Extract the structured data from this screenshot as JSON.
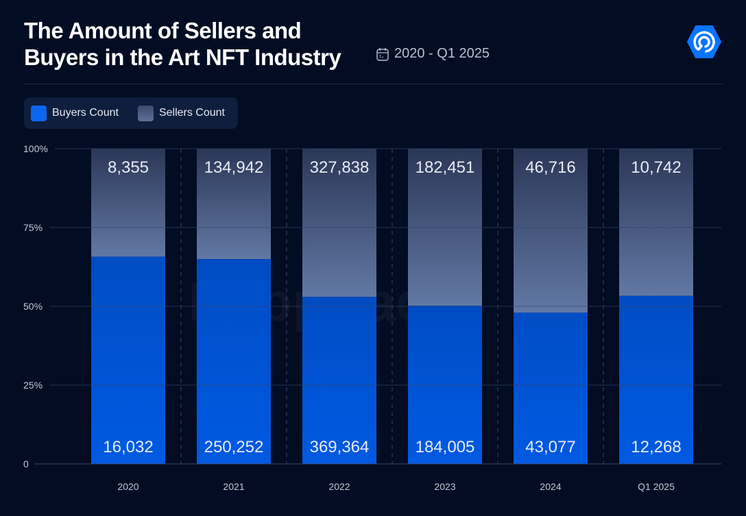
{
  "header": {
    "title_line1": "The Amount of Sellers and",
    "title_line2": "Buyers in the Art NFT Industry",
    "period": "2020 - Q1 2025",
    "period_icon": "calendar-icon",
    "logo": "DappRadar"
  },
  "legend": {
    "items": [
      {
        "label": "Buyers Count",
        "color": "#0a66f0"
      },
      {
        "label": "Sellers Count",
        "color": "#55678f"
      }
    ]
  },
  "chart_data": {
    "type": "bar",
    "stacked": "percent",
    "title": "The Amount of Sellers and Buyers in the Art NFT Industry",
    "categories": [
      "2020",
      "2021",
      "2022",
      "2023",
      "2024",
      "Q1 2025"
    ],
    "series": [
      {
        "name": "Buyers Count",
        "values": [
          16032,
          250252,
          369364,
          184005,
          43077,
          12268
        ],
        "labels": [
          "16,032",
          "250,252",
          "369,364",
          "184,005",
          "43,077",
          "12,268"
        ],
        "color": "#0055d4"
      },
      {
        "name": "Sellers Count",
        "values": [
          8355,
          134942,
          327838,
          182451,
          46716,
          10742
        ],
        "labels": [
          "8,355",
          "134,942",
          "327,838",
          "182,451",
          "46,716",
          "10,742"
        ],
        "color": "#4a5d86"
      }
    ],
    "ytick_labels": [
      "0",
      "25%",
      "50%",
      "75%",
      "100%"
    ],
    "ylim": [
      0,
      100
    ],
    "grid": true,
    "legend_position": "top-left",
    "watermark": "DappRadar"
  }
}
